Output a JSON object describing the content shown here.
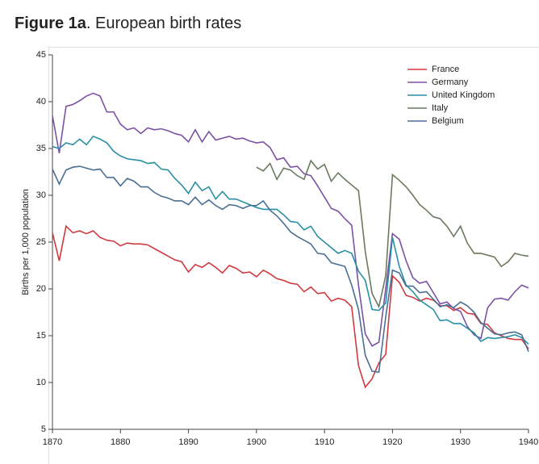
{
  "chart_data": {
    "type": "line",
    "title_label": "Figure 1a",
    "title": ". European birth rates",
    "y_label": "Births per 1,000 population",
    "x": [
      1870,
      1871,
      1872,
      1873,
      1874,
      1875,
      1876,
      1877,
      1878,
      1879,
      1880,
      1881,
      1882,
      1883,
      1884,
      1885,
      1886,
      1887,
      1888,
      1889,
      1890,
      1891,
      1892,
      1893,
      1894,
      1895,
      1896,
      1897,
      1898,
      1899,
      1900,
      1901,
      1902,
      1903,
      1904,
      1905,
      1906,
      1907,
      1908,
      1909,
      1910,
      1911,
      1912,
      1913,
      1914,
      1915,
      1916,
      1917,
      1918,
      1919,
      1920,
      1921,
      1922,
      1923,
      1924,
      1925,
      1926,
      1927,
      1928,
      1929,
      1930,
      1931,
      1932,
      1933,
      1934,
      1935,
      1936,
      1937,
      1938,
      1939,
      1940
    ],
    "series": [
      {
        "name": "France",
        "color": "#d03a3f",
        "values": [
          26,
          23,
          26.7,
          26,
          26.2,
          25.9,
          26.2,
          25.5,
          25.2,
          25.1,
          24.6,
          24.9,
          24.8,
          24.8,
          24.7,
          24.3,
          23.9,
          23.5,
          23.1,
          22.9,
          21.8,
          22.6,
          22.3,
          22.8,
          22.3,
          21.7,
          22.5,
          22.2,
          21.7,
          21.8,
          21.3,
          22,
          21.6,
          21.1,
          20.9,
          20.6,
          20.5,
          19.7,
          20.2,
          19.5,
          19.6,
          18.7,
          19,
          18.8,
          18.1,
          11.8,
          9.5,
          10.4,
          12.1,
          13,
          21.4,
          20.7,
          19.3,
          19.1,
          18.7,
          19,
          18.8,
          18.2,
          18.2,
          17.7,
          18,
          17.4,
          17.3,
          16.3,
          16.2,
          15.3,
          15,
          14.7,
          14.6,
          14.6,
          13.6
        ]
      },
      {
        "name": "Germany",
        "color": "#7b52a4",
        "values": [
          38.5,
          34.5,
          39.5,
          39.7,
          40.1,
          40.6,
          40.9,
          40.6,
          38.9,
          38.9,
          37.6,
          37,
          37.2,
          36.6,
          37.2,
          37,
          37.1,
          36.9,
          36.6,
          36.4,
          35.7,
          37,
          35.7,
          36.8,
          35.9,
          36.1,
          36.3,
          36,
          36.1,
          35.8,
          35.6,
          35.7,
          35.1,
          33.8,
          34,
          33,
          33.1,
          32.3,
          32.1,
          31,
          29.8,
          28.6,
          28.3,
          27.5,
          26.8,
          20.4,
          15.2,
          13.9,
          14.3,
          20,
          25.9,
          25.3,
          23,
          21.2,
          20.6,
          20.8,
          19.6,
          18.4,
          18.6,
          17.9,
          17.6,
          16,
          15.1,
          14.7,
          18,
          18.9,
          19,
          18.8,
          19.7,
          20.4,
          20.1
        ]
      },
      {
        "name": "United Kingdom",
        "color": "#2a8fa6",
        "values": [
          35.2,
          35,
          35.6,
          35.4,
          36,
          35.4,
          36.3,
          36,
          35.6,
          34.7,
          34.2,
          33.9,
          33.8,
          33.7,
          33.4,
          33.5,
          32.8,
          32.7,
          31.8,
          31.1,
          30.2,
          31.4,
          30.5,
          30.9,
          29.6,
          30.4,
          29.6,
          29.6,
          29.3,
          29,
          28.7,
          28.5,
          28.5,
          28.5,
          27.9,
          27.2,
          27.1,
          26.3,
          26.7,
          25.6,
          25,
          24.4,
          23.8,
          24.1,
          23.8,
          21.9,
          20.9,
          17.8,
          17.7,
          18.5,
          25.5,
          22.4,
          20.4,
          19.7,
          18.8,
          18.3,
          17.8,
          16.6,
          16.7,
          16.3,
          16.3,
          15.8,
          15.3,
          14.4,
          14.8,
          14.7,
          14.8,
          14.9,
          15.1,
          14.8,
          14.1
        ]
      },
      {
        "name": "Italy",
        "color": "#6b7a5e",
        "values": [
          null,
          null,
          null,
          null,
          null,
          null,
          null,
          null,
          null,
          null,
          null,
          null,
          null,
          null,
          null,
          null,
          null,
          null,
          null,
          null,
          null,
          null,
          null,
          null,
          null,
          null,
          null,
          null,
          null,
          null,
          33,
          32.6,
          33.4,
          31.7,
          32.9,
          32.7,
          32.1,
          31.7,
          33.7,
          32.8,
          33.3,
          31.5,
          32.4,
          31.7,
          31.1,
          30.5,
          24,
          19.5,
          18.1,
          21.4,
          32.2,
          31.6,
          30.9,
          30,
          29,
          28.4,
          27.7,
          27.5,
          26.7,
          25.6,
          26.7,
          24.9,
          23.8,
          23.8,
          23.6,
          23.4,
          22.4,
          22.9,
          23.8,
          23.6,
          23.5
        ]
      },
      {
        "name": "Belgium",
        "color": "#4a6f94",
        "values": [
          32.8,
          31.2,
          32.7,
          33,
          33.1,
          32.9,
          32.7,
          32.8,
          31.9,
          31.9,
          31,
          31.8,
          31.5,
          30.9,
          30.9,
          30.3,
          29.9,
          29.7,
          29.4,
          29.4,
          29,
          29.8,
          29,
          29.5,
          28.9,
          28.5,
          29,
          28.9,
          28.6,
          28.9,
          28.9,
          29.4,
          28.4,
          27.8,
          27,
          26.1,
          25.6,
          25.2,
          24.8,
          23.8,
          23.7,
          22.8,
          22.6,
          22.4,
          20.4,
          17.8,
          12.9,
          11.2,
          11.1,
          17,
          22,
          21.7,
          20.3,
          20.3,
          19.6,
          19.7,
          18.9,
          18.1,
          18.3,
          18,
          18.6,
          18.2,
          17.5,
          16.4,
          15.8,
          15.2,
          15.1,
          15.3,
          15.4,
          15.1,
          13.3
        ]
      }
    ],
    "xlim": [
      1870,
      1940
    ],
    "xticks": [
      1870,
      1880,
      1890,
      1900,
      1910,
      1920,
      1930,
      1940
    ],
    "ylim": [
      5,
      45
    ],
    "yticks": [
      5,
      10,
      15,
      20,
      25,
      30,
      35,
      40,
      45
    ],
    "grid": false,
    "legend": "upper right"
  }
}
